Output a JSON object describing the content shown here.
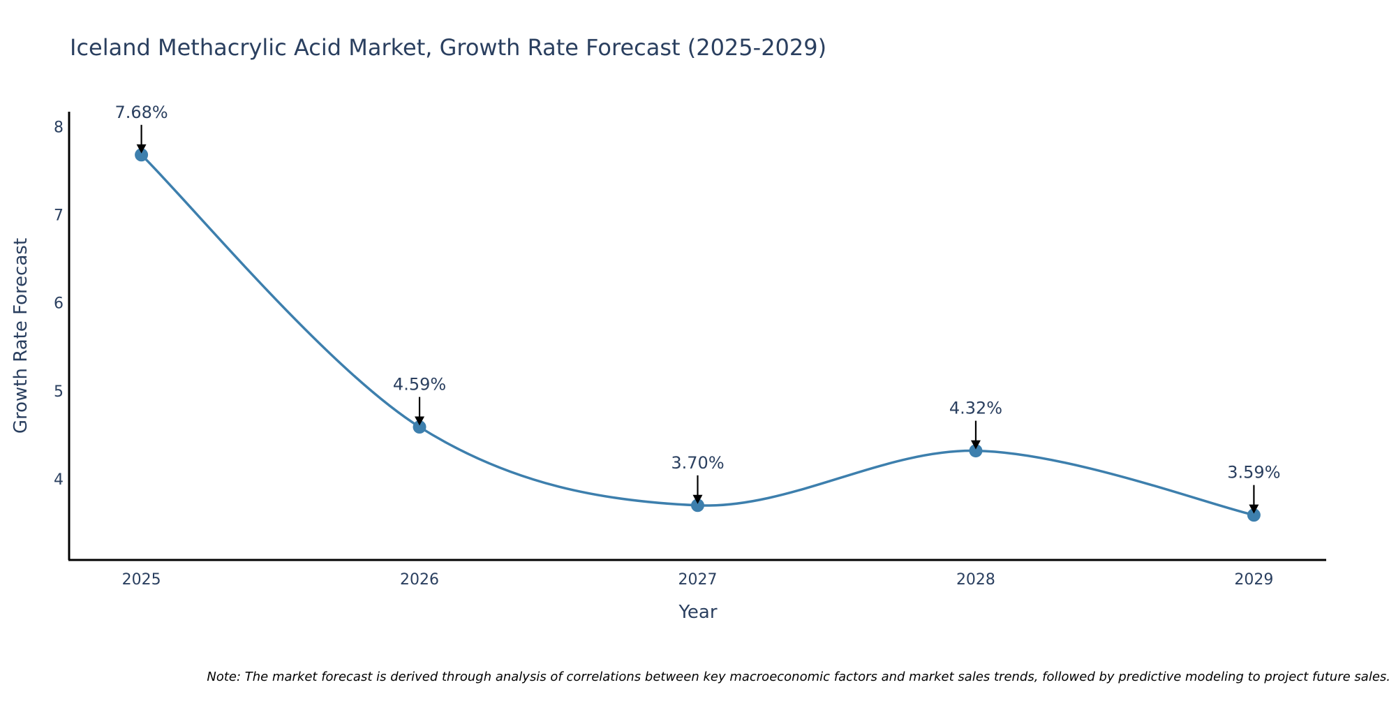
{
  "colors": {
    "text": "#2a3f5f",
    "line": "#3d7fad",
    "marker": "#3d7fad",
    "axis": "#000000",
    "arrow": "#000000",
    "note": "#000000",
    "background": "#ffffff"
  },
  "chart_data": {
    "type": "line",
    "title": "Iceland Methacrylic Acid Market, Growth Rate Forecast (2025-2029)",
    "xlabel": "Year",
    "ylabel": "Growth Rate Forecast",
    "categories": [
      "2025",
      "2026",
      "2027",
      "2028",
      "2029"
    ],
    "series": [
      {
        "name": "Growth Rate Forecast",
        "values": [
          7.68,
          4.59,
          3.7,
          4.32,
          3.59
        ],
        "labels": [
          "7.68%",
          "4.59%",
          "3.70%",
          "4.32%",
          "3.59%"
        ]
      }
    ],
    "y_ticks": [
      "4",
      "5",
      "6",
      "7",
      "8"
    ],
    "ylim": [
      3.08,
      8.17
    ],
    "x_range": [
      -0.26,
      4.26
    ],
    "grid": false,
    "legend": "none",
    "line_shape": "spline"
  },
  "note": "Note: The market forecast is derived through analysis of correlations between key macroeconomic factors and market sales trends, followed by predictive modeling to project future sales."
}
